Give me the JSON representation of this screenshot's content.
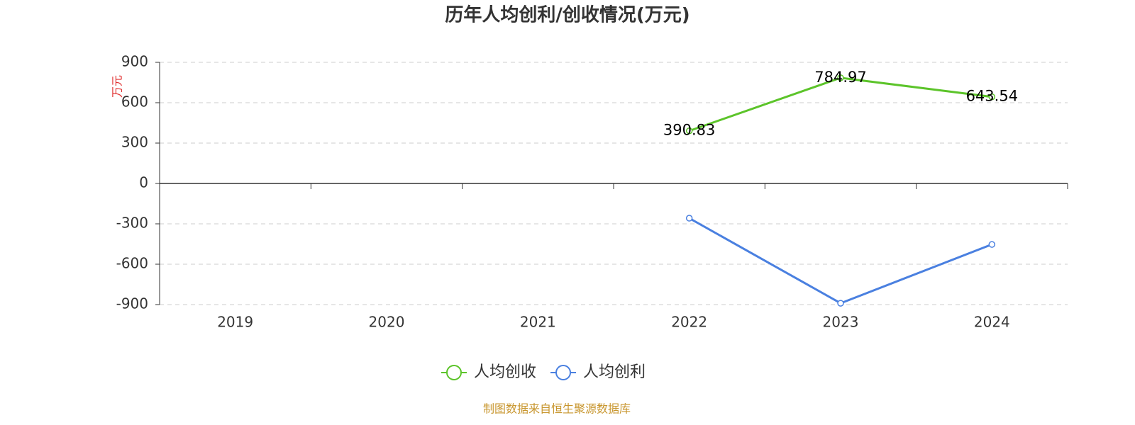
{
  "chart_data": {
    "type": "line",
    "title": "历年人均创利/创收情况(万元)",
    "y_label": "万元",
    "categories": [
      "2019",
      "2020",
      "2021",
      "2022",
      "2023",
      "2024"
    ],
    "series": [
      {
        "name": "人均创收",
        "color": "#5cc42a",
        "values": [
          null,
          null,
          null,
          390.83,
          784.97,
          643.54
        ],
        "show_labels": true
      },
      {
        "name": "人均创利",
        "color": "#4a80e0",
        "values": [
          null,
          null,
          null,
          -258,
          -890,
          -453
        ],
        "show_labels": false
      }
    ],
    "ylim": [
      -900,
      900
    ],
    "yticks": [
      -900,
      -600,
      -300,
      0,
      300,
      600,
      900
    ],
    "grid": true,
    "legend": "bottom",
    "source": "制图数据来自恒生聚源数据库"
  }
}
